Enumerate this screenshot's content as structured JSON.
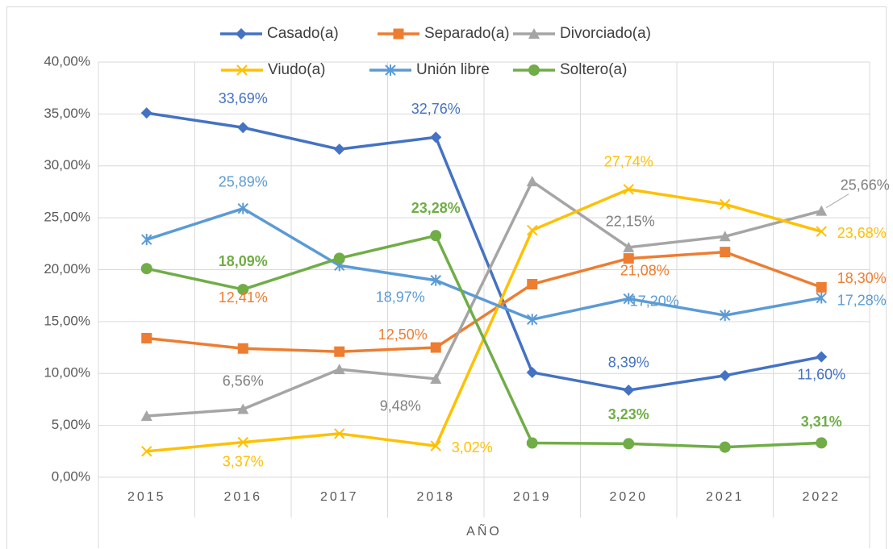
{
  "chart_data": {
    "type": "line",
    "x_label": "AÑO",
    "categories": [
      "2015",
      "2016",
      "2017",
      "2018",
      "2019",
      "2020",
      "2021",
      "2022"
    ],
    "series": [
      {
        "name": "Casado(a)",
        "color": "#4472c4",
        "marker": "diamond",
        "values": [
          35.1,
          33.69,
          31.6,
          32.76,
          10.1,
          8.39,
          9.8,
          11.6
        ],
        "value_labels": [
          null,
          "33,69%",
          null,
          "32,76%",
          null,
          "8,39%",
          null,
          "11,60%"
        ]
      },
      {
        "name": "Separado(a)",
        "color": "#ed7d31",
        "marker": "square",
        "values": [
          13.4,
          12.41,
          12.1,
          12.5,
          18.6,
          21.08,
          21.7,
          18.3
        ],
        "value_labels": [
          null,
          "12,41%",
          null,
          "12,50%",
          null,
          "21,08%",
          null,
          "18,30%"
        ]
      },
      {
        "name": "Divorciado(a)",
        "color": "#a5a5a5",
        "marker": "triangle",
        "values": [
          5.9,
          6.56,
          10.4,
          9.48,
          28.5,
          22.15,
          23.2,
          25.66
        ],
        "value_labels": [
          null,
          "6,56%",
          null,
          "9,48%",
          null,
          "22,15%",
          null,
          "25,66%"
        ]
      },
      {
        "name": "Viudo(a)",
        "color": "#ffc000",
        "marker": "x",
        "values": [
          2.5,
          3.37,
          4.2,
          3.02,
          23.8,
          27.74,
          26.3,
          23.68
        ],
        "value_labels": [
          null,
          "3,37%",
          null,
          "3,02%",
          null,
          "27,74%",
          null,
          "23,68%"
        ]
      },
      {
        "name": "Unión libre",
        "color": "#5b9bd5",
        "marker": "star",
        "values": [
          22.9,
          25.89,
          20.4,
          18.97,
          15.2,
          17.2,
          15.6,
          17.28
        ],
        "value_labels": [
          null,
          "25,89%",
          null,
          "18,97%",
          null,
          "17,20%",
          null,
          "17,28%"
        ]
      },
      {
        "name": "Soltero(a)",
        "color": "#70ad47",
        "marker": "circle",
        "values": [
          20.1,
          18.09,
          21.1,
          23.28,
          3.3,
          3.23,
          2.9,
          3.31
        ],
        "value_labels": [
          null,
          "18,09%",
          null,
          "23,28%",
          null,
          "3,23%",
          null,
          "3,31%"
        ]
      }
    ],
    "ylim": [
      0,
      40
    ],
    "yticks": [
      {
        "value": 0,
        "label": "0,00%"
      },
      {
        "value": 5,
        "label": "5,00%"
      },
      {
        "value": 10,
        "label": "10,00%"
      },
      {
        "value": 15,
        "label": "15,00%"
      },
      {
        "value": 20,
        "label": "20,00%"
      },
      {
        "value": 25,
        "label": "25,00%"
      },
      {
        "value": 30,
        "label": "30,00%"
      },
      {
        "value": 35,
        "label": "35,00%"
      },
      {
        "value": 40,
        "label": "40,00%"
      }
    ],
    "grid": true,
    "legend": "top"
  }
}
